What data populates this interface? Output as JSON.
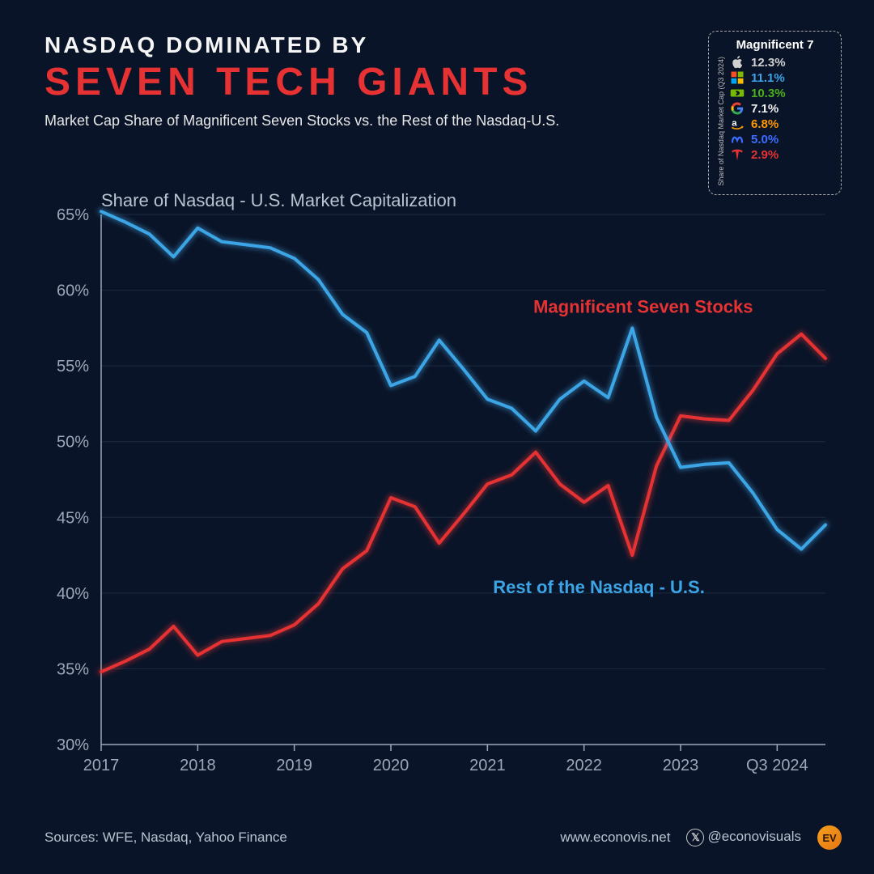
{
  "header": {
    "title_line1": "NASDAQ DOMINATED BY",
    "title_line2": "SEVEN TECH GIANTS",
    "subtitle": "Market Cap Share of Magnificent Seven Stocks vs. the Rest of the Nasdaq-U.S."
  },
  "legend": {
    "title": "Magnificent 7",
    "vertical_label": "Share of Nasdaq Market Cap (Q3 2024)",
    "items": [
      {
        "name": "apple",
        "value": "12.3%",
        "color": "#d0d0d0"
      },
      {
        "name": "microsoft",
        "value": "11.1%",
        "color": "#3ca5e6"
      },
      {
        "name": "nvidia",
        "value": "10.3%",
        "color": "#4caf1c"
      },
      {
        "name": "google",
        "value": "7.1%",
        "color": "#f0f0f0"
      },
      {
        "name": "amazon",
        "value": "6.8%",
        "color": "#ff9900"
      },
      {
        "name": "meta",
        "value": "5.0%",
        "color": "#3b6dff"
      },
      {
        "name": "tesla",
        "value": "2.9%",
        "color": "#e63232"
      }
    ]
  },
  "chart": {
    "title": "Share of Nasdaq - U.S. Market Capitalization",
    "type": "line",
    "background_color": "#0a1428",
    "grid_color": "#1a2a42",
    "axis_color": "#9aa8b8",
    "ylim": [
      30,
      65
    ],
    "ytick_step": 5,
    "yticks": [
      "30%",
      "35%",
      "40%",
      "45%",
      "50%",
      "55%",
      "60%",
      "65%"
    ],
    "xticks": [
      "2017",
      "2018",
      "2019",
      "2020",
      "2021",
      "2022",
      "2023",
      "Q3 2024"
    ],
    "xtick_positions": [
      0,
      4,
      8,
      12,
      16,
      20,
      24,
      28
    ],
    "n_points": 31,
    "series": [
      {
        "name": "Magnificent Seven Stocks",
        "label": "Magnificent Seven Stocks",
        "color": "#e63232",
        "glow_color": "#ff3a3a",
        "label_pos": {
          "x_index": 27,
          "y_value": 58.5
        },
        "values": [
          34.8,
          35.5,
          36.3,
          37.8,
          35.9,
          36.8,
          37.0,
          37.2,
          37.9,
          39.3,
          41.6,
          42.8,
          46.3,
          45.7,
          43.3,
          45.2,
          47.2,
          47.8,
          49.3,
          47.2,
          46.0,
          47.1,
          42.5,
          48.4,
          51.7,
          51.5,
          51.4,
          53.4,
          55.8,
          57.1,
          55.5
        ]
      },
      {
        "name": "Rest of the Nasdaq - U.S.",
        "label": "Rest of the Nasdaq - U.S.",
        "color": "#3ca5e6",
        "glow_color": "#48b8ff",
        "label_pos": {
          "x_index": 25,
          "y_value": 40.0
        },
        "values": [
          65.2,
          64.5,
          63.7,
          62.2,
          64.1,
          63.2,
          63.0,
          62.8,
          62.1,
          60.7,
          58.4,
          57.2,
          53.7,
          54.3,
          56.7,
          54.8,
          52.8,
          52.2,
          50.7,
          52.8,
          54.0,
          52.9,
          57.5,
          51.6,
          48.3,
          48.5,
          48.6,
          46.6,
          44.2,
          42.9,
          44.5
        ]
      }
    ],
    "line_width": 4,
    "glow_width": 9,
    "tick_fontsize": 20,
    "label_fontsize": 22
  },
  "footer": {
    "sources": "Sources: WFE, Nasdaq, Yahoo Finance",
    "website": "www.econovis.net",
    "handle": "@econovisuals",
    "badge": "EV"
  }
}
